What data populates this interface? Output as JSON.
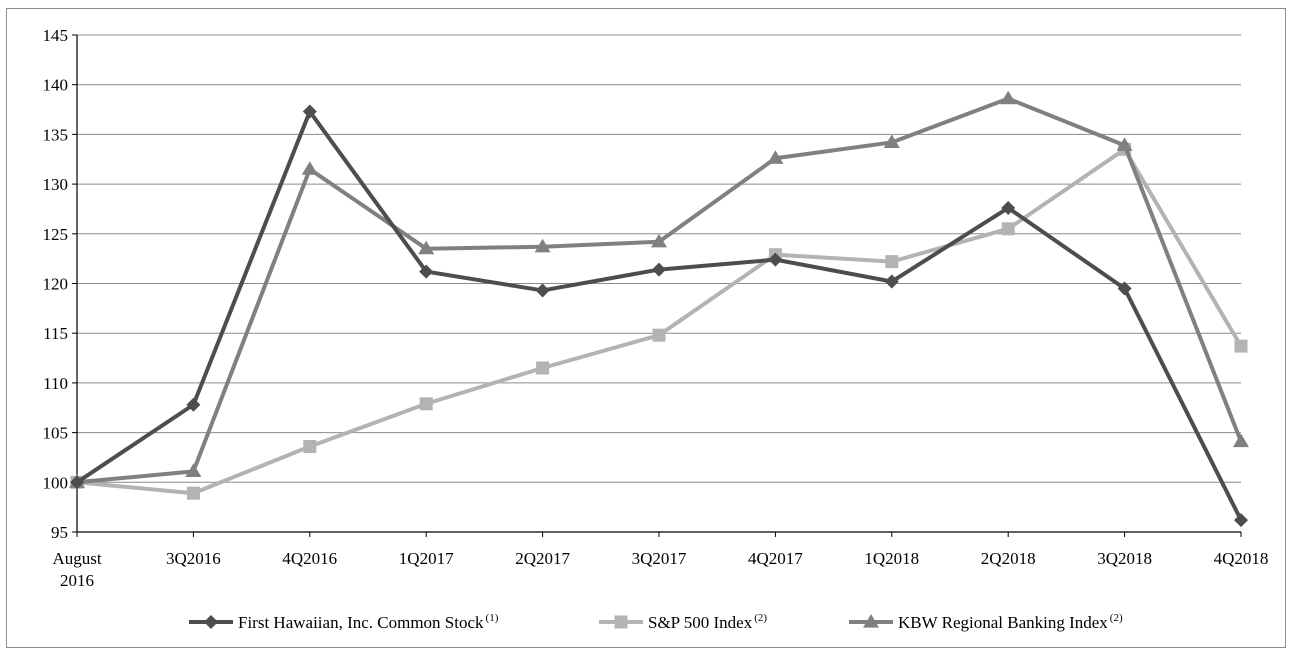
{
  "chart_data": {
    "type": "line",
    "title": "",
    "xlabel": "",
    "ylabel": "",
    "categories": [
      "August\n2016",
      "3Q2016",
      "4Q2016",
      "1Q2017",
      "2Q2017",
      "3Q2017",
      "4Q2017",
      "1Q2018",
      "2Q2018",
      "3Q2018",
      "4Q2018"
    ],
    "ylim": [
      95,
      145
    ],
    "yticks": [
      95,
      100,
      105,
      110,
      115,
      120,
      125,
      130,
      135,
      140,
      145
    ],
    "grid": true,
    "legend_position": "bottom",
    "series": [
      {
        "name": "First Hawaiian, Inc. Common Stock",
        "note": "(1)",
        "marker": "diamond",
        "color": "#4d4d4d",
        "values": [
          100,
          107.8,
          137.3,
          121.2,
          119.3,
          121.4,
          122.4,
          120.2,
          127.6,
          119.5,
          96.2
        ]
      },
      {
        "name": "S&P 500 Index",
        "note": "(2)",
        "marker": "square",
        "color": "#b3b3b3",
        "values": [
          100,
          98.9,
          103.6,
          107.9,
          111.5,
          114.8,
          122.9,
          122.2,
          125.5,
          133.5,
          113.7
        ]
      },
      {
        "name": "KBW Regional Banking Index",
        "note": "(2)",
        "marker": "triangle",
        "color": "#808080",
        "values": [
          100,
          101.1,
          131.5,
          123.5,
          123.7,
          124.2,
          132.6,
          134.2,
          138.6,
          133.9,
          104.1
        ]
      }
    ]
  }
}
